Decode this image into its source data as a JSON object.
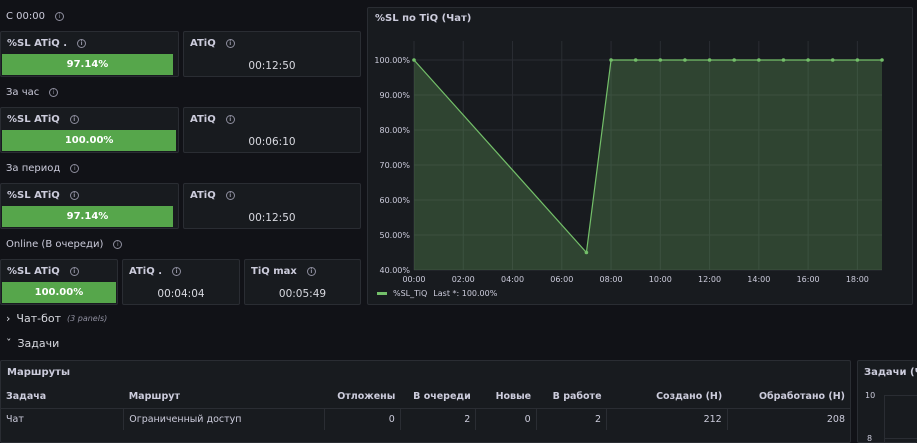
{
  "rows": {
    "since_midnight": "С 00:00",
    "per_hour": "За час",
    "per_period": "За период",
    "online": "Online (В очереди)"
  },
  "stats": {
    "since_midnight": {
      "sl_title": "%SL ATiQ .",
      "sl_value": "97.14%",
      "sl_fraction": 0.9714,
      "atiq_title": "ATiQ",
      "atiq_value": "00:12:50"
    },
    "per_hour": {
      "sl_title": "%SL ATiQ",
      "sl_value": "100.00%",
      "sl_fraction": 1.0,
      "atiq_title": "ATiQ",
      "atiq_value": "00:06:10"
    },
    "per_period": {
      "sl_title": "%SL ATiQ",
      "sl_value": "97.14%",
      "sl_fraction": 0.9714,
      "atiq_title": "ATiQ",
      "atiq_value": "00:12:50"
    },
    "online": {
      "sl_title": "%SL ATiQ",
      "sl_value": "100.00%",
      "sl_fraction": 1.0,
      "atiq_title": "ATiQ .",
      "atiq_value": "00:04:04",
      "tiqmax_title": "TiQ max",
      "tiqmax_value": "00:05:49"
    }
  },
  "chart_panel": {
    "title": "%SL по TiQ (Чат)",
    "legend_label": "%SL_TiQ",
    "legend_last": "Last *: 100.00%"
  },
  "chart_data": {
    "type": "area",
    "x_ticks": [
      "00:00",
      "02:00",
      "04:00",
      "06:00",
      "08:00",
      "10:00",
      "12:00",
      "14:00",
      "16:00",
      "18:00"
    ],
    "y_ticks": [
      "40.00%",
      "50.00%",
      "60.00%",
      "70.00%",
      "80.00%",
      "90.00%",
      "100.00%"
    ],
    "xlim": [
      "00:00",
      "19:00"
    ],
    "ylim": [
      40,
      100
    ],
    "grid": true,
    "legend": "bottom-left",
    "color": "#73bf69",
    "series": [
      {
        "name": "%SL_TiQ",
        "x": [
          "00:00",
          "07:00",
          "08:00",
          "09:00",
          "10:00",
          "11:00",
          "12:00",
          "13:00",
          "14:00",
          "15:00",
          "16:00",
          "17:00",
          "18:00",
          "19:00"
        ],
        "y": [
          100,
          45,
          100,
          100,
          100,
          100,
          100,
          100,
          100,
          100,
          100,
          100,
          100,
          100
        ]
      }
    ]
  },
  "sections": {
    "chatbot": {
      "label": "Чат-бот",
      "note": "(3 panels)"
    },
    "tasks": {
      "label": "Задачи"
    }
  },
  "routes_panel": {
    "title": "Маршруты",
    "columns": [
      "Задача",
      "Маршрут",
      "Отложены",
      "В очереди",
      "Новые",
      "В работе",
      "Создано (Н)",
      "Обработано (Н)"
    ],
    "rows": [
      [
        "Чат",
        "Ограниченный доступ",
        "0",
        "2",
        "0",
        "2",
        "212",
        "208"
      ]
    ]
  },
  "side_panel": {
    "title": "Задачи (Чат",
    "y_ticks": [
      "10",
      "8"
    ]
  },
  "colors": {
    "background": "#111217",
    "panel": "#181b1f",
    "border": "#2a2d33",
    "green": "#56a64b",
    "line": "#73bf69"
  }
}
